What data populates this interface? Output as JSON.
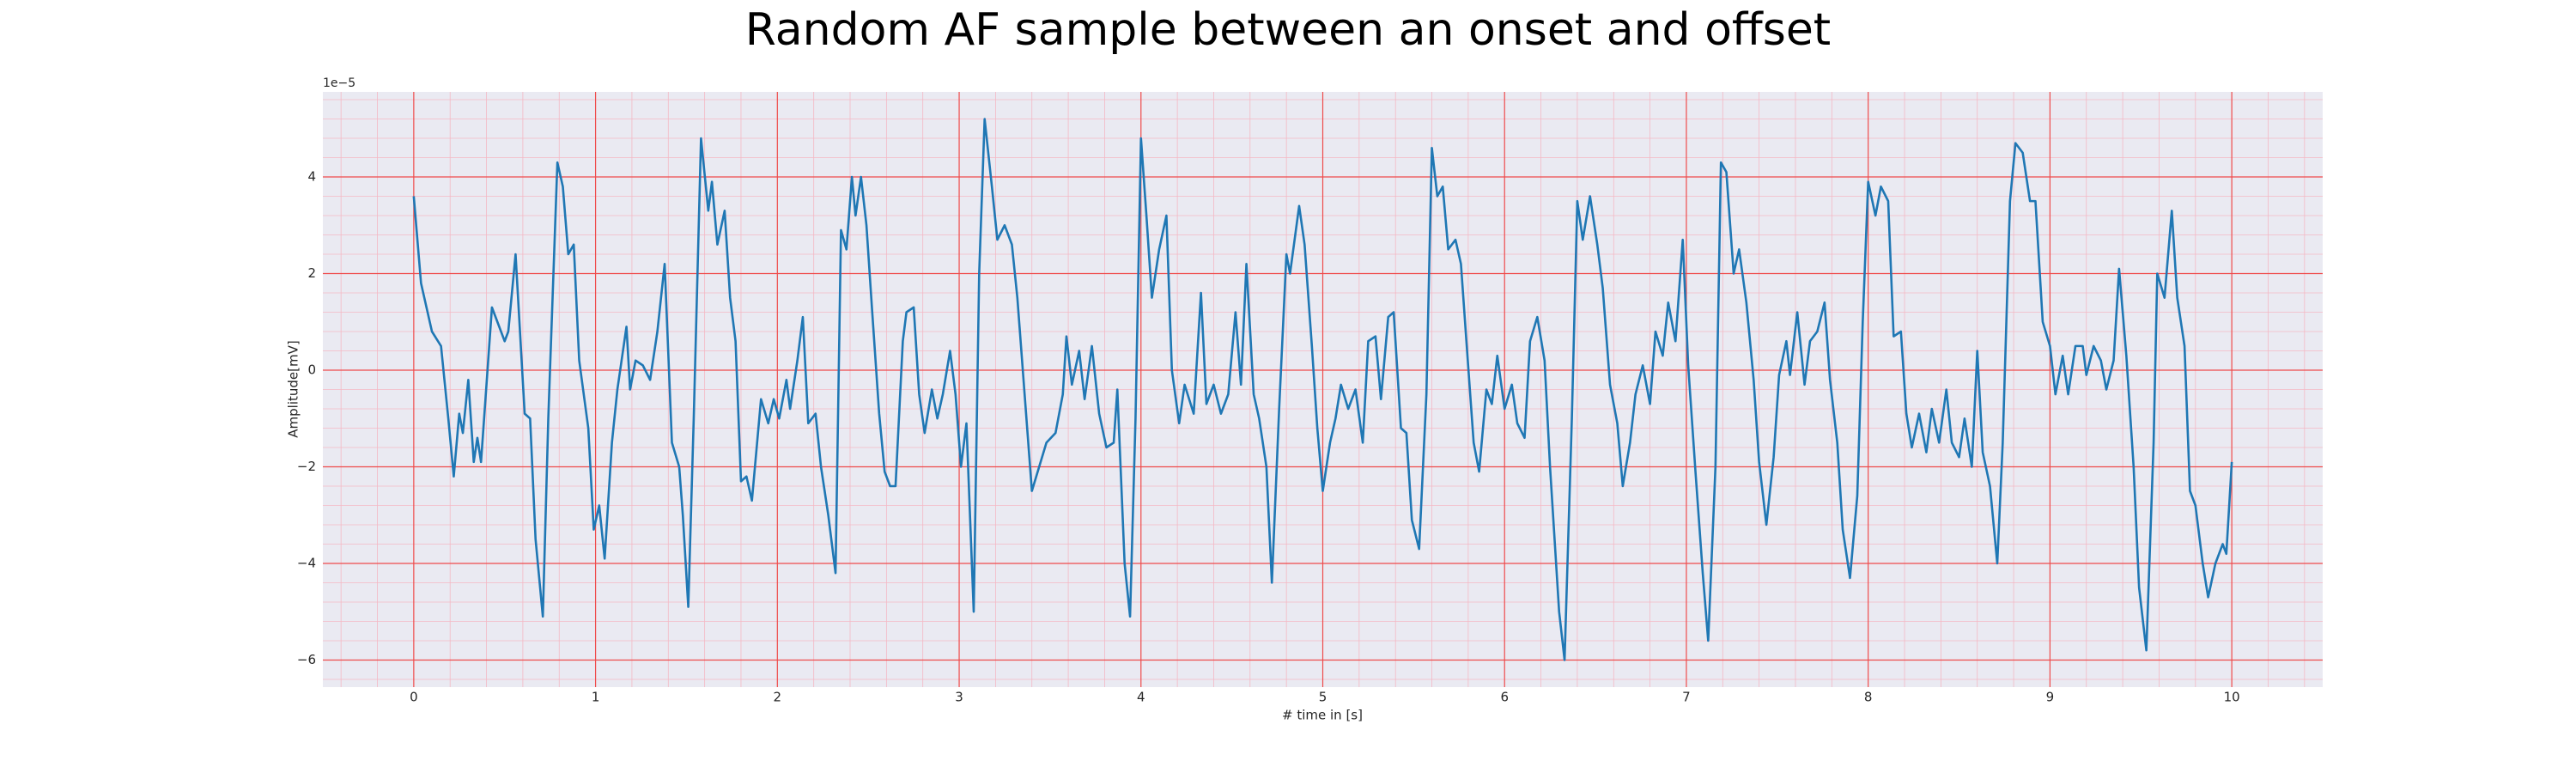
{
  "chart_data": {
    "type": "line",
    "title": "Random AF sample between an onset and offset",
    "xlabel": "# time in [s]",
    "ylabel": "Amplitude[mV]",
    "y_offset_label": "1e−5",
    "color": "#1f77b4",
    "grid": true,
    "minor_grid": true,
    "xlim": [
      -0.5,
      10.5
    ],
    "ylim": [
      -6.56,
      5.76
    ],
    "xticks": [
      0,
      1,
      2,
      3,
      4,
      5,
      6,
      7,
      8,
      9,
      10
    ],
    "yticks": [
      {
        "value": -6,
        "label": "−6"
      },
      {
        "value": -4,
        "label": "−4"
      },
      {
        "value": -2,
        "label": "−2"
      },
      0,
      2,
      4
    ],
    "x": [
      0,
      0.04,
      0.1,
      0.15,
      0.19,
      0.22,
      0.25,
      0.27,
      0.3,
      0.33,
      0.35,
      0.37,
      0.43,
      0.47,
      0.5,
      0.52,
      0.56,
      0.61,
      0.64,
      0.67,
      0.71,
      0.74,
      0.79,
      0.82,
      0.85,
      0.88,
      0.91,
      0.96,
      0.99,
      1.02,
      1.05,
      1.09,
      1.12,
      1.17,
      1.19,
      1.22,
      1.26,
      1.3,
      1.34,
      1.38,
      1.42,
      1.46,
      1.48,
      1.51,
      1.54,
      1.58,
      1.62,
      1.64,
      1.67,
      1.71,
      1.74,
      1.77,
      1.8,
      1.83,
      1.86,
      1.91,
      1.95,
      1.98,
      2.01,
      2.05,
      2.07,
      2.11,
      2.14,
      2.17,
      2.21,
      2.24,
      2.28,
      2.32,
      2.35,
      2.38,
      2.41,
      2.43,
      2.46,
      2.49,
      2.52,
      2.56,
      2.59,
      2.62,
      2.65,
      2.69,
      2.71,
      2.75,
      2.78,
      2.81,
      2.85,
      2.88,
      2.91,
      2.95,
      2.98,
      3.01,
      3.04,
      3.08,
      3.11,
      3.14,
      3.18,
      3.21,
      3.25,
      3.29,
      3.32,
      3.37,
      3.4,
      3.44,
      3.48,
      3.53,
      3.57,
      3.59,
      3.62,
      3.66,
      3.69,
      3.73,
      3.77,
      3.81,
      3.85,
      3.87,
      3.91,
      3.94,
      3.97,
      4.0,
      4.03,
      4.06,
      4.1,
      4.14,
      4.17,
      4.21,
      4.24,
      4.29,
      4.33,
      4.36,
      4.4,
      4.44,
      4.48,
      4.52,
      4.55,
      4.58,
      4.62,
      4.65,
      4.69,
      4.72,
      4.76,
      4.8,
      4.82,
      4.87,
      4.9,
      4.94,
      4.97,
      5.0,
      5.04,
      5.07,
      5.1,
      5.14,
      5.18,
      5.22,
      5.25,
      5.29,
      5.32,
      5.36,
      5.39,
      5.43,
      5.46,
      5.49,
      5.53,
      5.57,
      5.6,
      5.63,
      5.66,
      5.69,
      5.73,
      5.76,
      5.79,
      5.83,
      5.86,
      5.9,
      5.93,
      5.96,
      6.0,
      6.04,
      6.07,
      6.11,
      6.14,
      6.18,
      6.22,
      6.25,
      6.3,
      6.33,
      6.37,
      6.4,
      6.43,
      6.47,
      6.51,
      6.54,
      6.58,
      6.62,
      6.65,
      6.69,
      6.72,
      6.76,
      6.8,
      6.83,
      6.87,
      6.9,
      6.94,
      6.98,
      7.01,
      7.05,
      7.09,
      7.12,
      7.16,
      7.19,
      7.22,
      7.26,
      7.29,
      7.33,
      7.37,
      7.4,
      7.44,
      7.48,
      7.51,
      7.55,
      7.57,
      7.61,
      7.65,
      7.68,
      7.72,
      7.76,
      7.79,
      7.83,
      7.86,
      7.9,
      7.94,
      7.97,
      8.0,
      8.04,
      8.07,
      8.11,
      8.14,
      8.18,
      8.21,
      8.24,
      8.28,
      8.32,
      8.35,
      8.39,
      8.43,
      8.46,
      8.5,
      8.53,
      8.57,
      8.6,
      8.63,
      8.67,
      8.71,
      8.74,
      8.78,
      8.81,
      8.85,
      8.89,
      8.92,
      8.96,
      9.0,
      9.03,
      9.07,
      9.1,
      9.14,
      9.18,
      9.2,
      9.24,
      9.28,
      9.31,
      9.35,
      9.38,
      9.42,
      9.46,
      9.49,
      9.53,
      9.57,
      9.59,
      9.63,
      9.67,
      9.7,
      9.74,
      9.77,
      9.8,
      9.84,
      9.87,
      9.91,
      9.95,
      9.97,
      10.0
    ],
    "values": [
      3.6,
      1.8,
      0.8,
      0.5,
      -1.0,
      -2.2,
      -0.9,
      -1.3,
      -0.2,
      -1.9,
      -1.4,
      -1.9,
      1.3,
      0.9,
      0.6,
      0.8,
      2.4,
      -0.9,
      -1.0,
      -3.5,
      -5.1,
      -1.0,
      4.3,
      3.8,
      2.4,
      2.6,
      0.2,
      -1.2,
      -3.3,
      -2.8,
      -3.9,
      -1.5,
      -0.4,
      0.9,
      -0.4,
      0.2,
      0.1,
      -0.2,
      0.8,
      2.2,
      -1.5,
      -2.0,
      -3.0,
      -4.9,
      -1.0,
      4.8,
      3.3,
      3.9,
      2.6,
      3.3,
      1.5,
      0.6,
      -2.3,
      -2.2,
      -2.7,
      -0.6,
      -1.1,
      -0.6,
      -1.0,
      -0.2,
      -0.8,
      0.2,
      1.1,
      -1.1,
      -0.9,
      -2.0,
      -3.0,
      -4.2,
      2.9,
      2.5,
      4.0,
      3.2,
      4.0,
      3.0,
      1.3,
      -0.9,
      -2.1,
      -2.4,
      -2.4,
      0.6,
      1.2,
      1.3,
      -0.5,
      -1.3,
      -0.4,
      -1.0,
      -0.5,
      0.4,
      -0.5,
      -2.0,
      -1.1,
      -5.0,
      2.0,
      5.2,
      3.8,
      2.7,
      3.0,
      2.6,
      1.5,
      -1.0,
      -2.5,
      -2.0,
      -1.5,
      -1.3,
      -0.5,
      0.7,
      -0.3,
      0.4,
      -0.6,
      0.5,
      -0.9,
      -1.6,
      -1.5,
      -0.4,
      -4.0,
      -5.1,
      -1.0,
      4.8,
      3.2,
      1.5,
      2.5,
      3.2,
      0.0,
      -1.1,
      -0.3,
      -0.9,
      1.6,
      -0.7,
      -0.3,
      -0.9,
      -0.5,
      1.2,
      -0.3,
      2.2,
      -0.5,
      -1.0,
      -2.0,
      -4.4,
      -0.8,
      2.4,
      2.0,
      3.4,
      2.6,
      0.5,
      -1.2,
      -2.5,
      -1.5,
      -1.0,
      -0.3,
      -0.8,
      -0.4,
      -1.5,
      0.6,
      0.7,
      -0.6,
      1.1,
      1.2,
      -1.2,
      -1.3,
      -3.1,
      -3.7,
      -0.5,
      4.6,
      3.6,
      3.8,
      2.5,
      2.7,
      2.2,
      0.6,
      -1.5,
      -2.1,
      -0.4,
      -0.7,
      0.3,
      -0.8,
      -0.3,
      -1.1,
      -1.4,
      0.6,
      1.1,
      0.2,
      -2.0,
      -5.0,
      -6.0,
      -1.0,
      3.5,
      2.7,
      3.6,
      2.6,
      1.7,
      -0.3,
      -1.1,
      -2.4,
      -1.5,
      -0.5,
      0.1,
      -0.7,
      0.8,
      0.3,
      1.4,
      0.6,
      2.7,
      0.1,
      -2.1,
      -4.2,
      -5.6,
      -2.0,
      4.3,
      4.1,
      2.0,
      2.5,
      1.4,
      -0.2,
      -1.9,
      -3.2,
      -1.8,
      -0.1,
      0.6,
      -0.1,
      1.2,
      -0.3,
      0.6,
      0.8,
      1.4,
      -0.2,
      -1.5,
      -3.3,
      -4.3,
      -2.6,
      1.0,
      3.9,
      3.2,
      3.8,
      3.5,
      0.7,
      0.8,
      -0.9,
      -1.6,
      -0.9,
      -1.7,
      -0.8,
      -1.5,
      -0.4,
      -1.5,
      -1.8,
      -1.0,
      -2.0,
      0.4,
      -1.7,
      -2.4,
      -4.0,
      -1.5,
      3.5,
      4.7,
      4.5,
      3.5,
      3.5,
      1.0,
      0.5,
      -0.5,
      0.3,
      -0.5,
      0.5,
      0.5,
      -0.1,
      0.5,
      0.2,
      -0.4,
      0.2,
      2.1,
      0.3,
      -2.0,
      -4.5,
      -5.8,
      -1.5,
      2.0,
      1.5,
      3.3,
      1.5,
      0.5,
      -2.5,
      -2.8,
      -4.0,
      -4.7,
      -4.0,
      -3.6,
      -3.8,
      -1.9
    ]
  }
}
